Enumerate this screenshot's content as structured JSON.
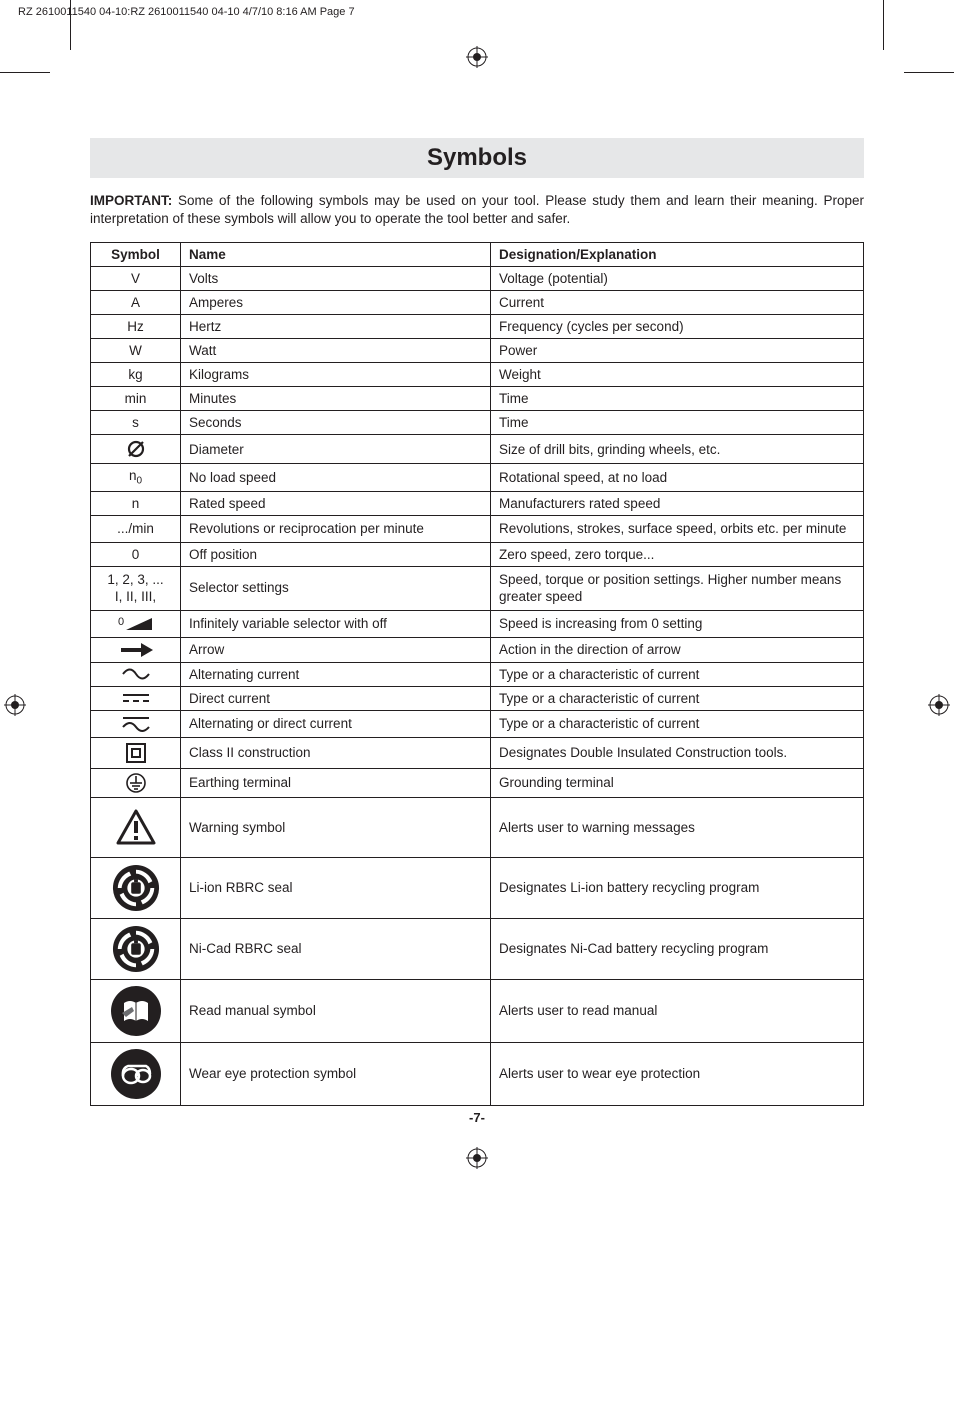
{
  "header_line": "RZ 2610011540 04-10:RZ 2610011540 04-10  4/7/10  8:16 AM  Page 7",
  "title": "Symbols",
  "intro_bold": "IMPORTANT:",
  "intro_text": " Some of the following symbols may be used on your tool.  Please study them and learn their meaning.  Proper interpretation of these symbols will allow you to operate the tool better and safer.",
  "table": {
    "headers": [
      "Symbol",
      "Name",
      "Designation/Explanation"
    ],
    "rows": [
      {
        "symbol": "V",
        "name": "Volts",
        "desc": "Voltage (potential)"
      },
      {
        "symbol": "A",
        "name": "Amperes",
        "desc": "Current"
      },
      {
        "symbol": "Hz",
        "name": "Hertz",
        "desc": "Frequency (cycles per second)"
      },
      {
        "symbol": "W",
        "name": "Watt",
        "desc": "Power"
      },
      {
        "symbol": "kg",
        "name": "Kilograms",
        "desc": "Weight"
      },
      {
        "symbol": "min",
        "name": "Minutes",
        "desc": "Time"
      },
      {
        "symbol": "s",
        "name": "Seconds",
        "desc": "Time"
      },
      {
        "symbol": "diameter",
        "name": "Diameter",
        "desc": "Size of drill bits, grinding wheels,  etc."
      },
      {
        "symbol": "n0",
        "name": "No load speed",
        "desc": "Rotational speed, at no load"
      },
      {
        "symbol": "n",
        "name": "Rated speed",
        "desc": "Manufacturers rated speed"
      },
      {
        "symbol": ".../min",
        "name": "Revolutions or reciprocation per minute",
        "desc": "Revolutions, strokes, surface speed, orbits etc. per minute"
      },
      {
        "symbol": "0",
        "name": "Off position",
        "desc": "Zero speed, zero torque..."
      },
      {
        "symbol": "1, 2, 3, ...\nI, II, III,",
        "name": "Selector settings",
        "desc": "Speed, torque or position settings. Higher number means greater speed"
      },
      {
        "symbol": "ramp",
        "name": "Infinitely variable selector with off",
        "desc": "Speed is increasing from 0 setting"
      },
      {
        "symbol": "arrow",
        "name": "Arrow",
        "desc": "Action in the direction of arrow"
      },
      {
        "symbol": "ac",
        "name": "Alternating current",
        "desc": "Type or a characteristic of current"
      },
      {
        "symbol": "dc",
        "name": "Direct current",
        "desc": "Type or a characteristic of current"
      },
      {
        "symbol": "acdc",
        "name": "Alternating or direct current",
        "desc": "Type or a characteristic of current"
      },
      {
        "symbol": "class2",
        "name": "Class II construction",
        "desc": "Designates Double Insulated Construction tools."
      },
      {
        "symbol": "earth",
        "name": "Earthing terminal",
        "desc": "Grounding terminal"
      },
      {
        "symbol": "warning",
        "name": "Warning symbol",
        "desc": "Alerts user to warning messages"
      },
      {
        "symbol": "liion",
        "name": "Li-ion RBRC seal",
        "desc": "Designates Li-ion battery recycling program"
      },
      {
        "symbol": "nicad",
        "name": "Ni-Cad RBRC seal",
        "desc": "Designates Ni-Cad battery recycling program"
      },
      {
        "symbol": "manual",
        "name": "Read manual symbol",
        "desc": "Alerts user to read manual"
      },
      {
        "symbol": "eye",
        "name": "Wear eye protection symbol",
        "desc": "Alerts user to wear eye protection"
      }
    ]
  },
  "page_number": "-7-",
  "colors": {
    "text": "#231f20",
    "title_bg": "#e6e7e8",
    "page_bg": "#ffffff"
  }
}
